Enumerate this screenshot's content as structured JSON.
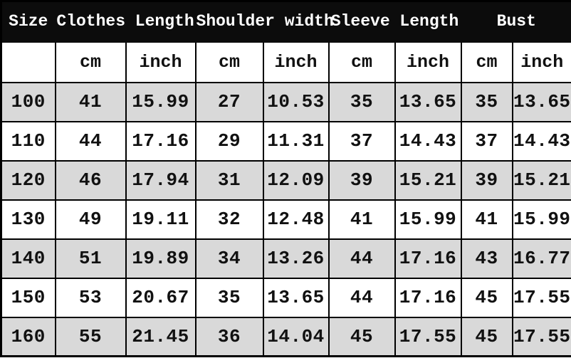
{
  "colors": {
    "header_bg": "#0c0c0c",
    "header_text": "#ffffff",
    "stripe_row_bg": "#d9d9d9",
    "plain_row_bg": "#ffffff",
    "border": "#000000"
  },
  "table": {
    "header_groups": [
      {
        "label": "Size"
      },
      {
        "label": "Clothes Length"
      },
      {
        "label": "Shoulder width"
      },
      {
        "label": "Sleeve Length"
      },
      {
        "label": "Bust"
      }
    ],
    "unit_row": [
      "",
      "cm",
      "inch",
      "cm",
      "inch",
      "cm",
      "inch",
      "cm",
      "inch"
    ]
  },
  "chart_data": {
    "type": "table",
    "columns": [
      "Size",
      "Clothes Length cm",
      "Clothes Length inch",
      "Shoulder width cm",
      "Shoulder width inch",
      "Sleeve Length cm",
      "Sleeve Length inch",
      "Bust cm",
      "Bust inch"
    ],
    "rows": [
      [
        100,
        41,
        15.99,
        27,
        10.53,
        35,
        13.65,
        35,
        13.65
      ],
      [
        110,
        44,
        17.16,
        29,
        11.31,
        37,
        14.43,
        37,
        14.43
      ],
      [
        120,
        46,
        17.94,
        31,
        12.09,
        39,
        15.21,
        39,
        15.21
      ],
      [
        130,
        49,
        19.11,
        32,
        12.48,
        41,
        15.99,
        41,
        15.99
      ],
      [
        140,
        51,
        19.89,
        34,
        13.26,
        44,
        17.16,
        43,
        16.77
      ],
      [
        150,
        53,
        20.67,
        35,
        13.65,
        44,
        17.16,
        45,
        17.55
      ],
      [
        160,
        55,
        21.45,
        36,
        14.04,
        45,
        17.55,
        45,
        17.55
      ]
    ]
  }
}
